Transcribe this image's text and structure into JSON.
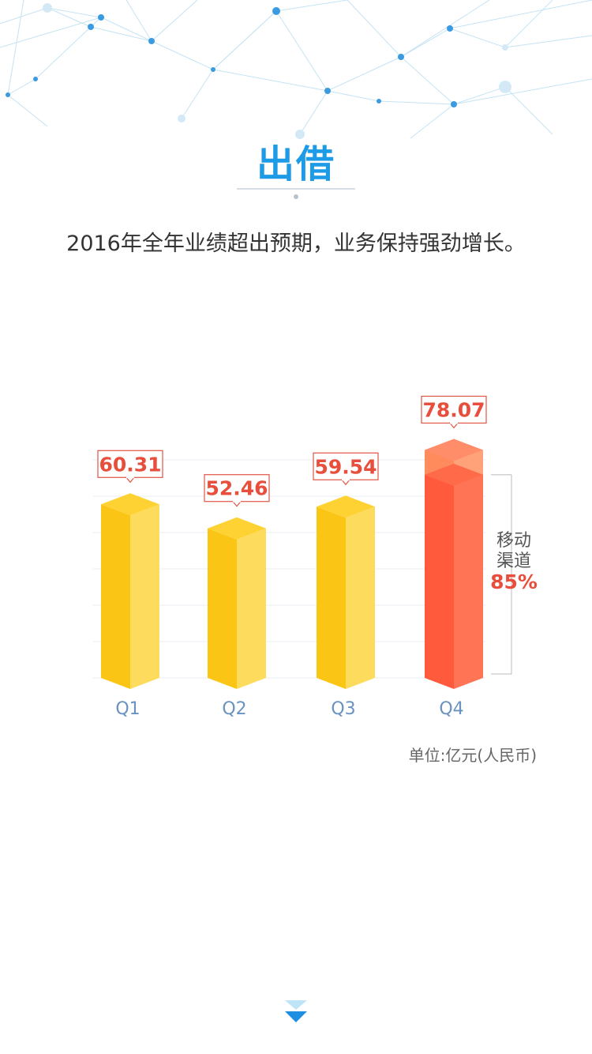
{
  "page": {
    "title": "出借",
    "subtitle": "2016年全年业绩超出预期，业务保持强劲增长。"
  },
  "chart_data": {
    "type": "bar",
    "categories": [
      "Q1",
      "Q2",
      "Q3",
      "Q4"
    ],
    "values": [
      60.31,
      52.46,
      59.54,
      78.07
    ],
    "value_labels": [
      "60.31",
      "52.46",
      "59.54",
      "78.07"
    ],
    "unit": "单位:亿元(人民币)",
    "colors": {
      "default": "#fbc515",
      "highlight": "#ff6848",
      "label": "#e84e3c",
      "axis_text": "#6a92bf"
    },
    "highlight_index": 3,
    "highlight_segment": {
      "label_line1": "移动",
      "label_line2": "渠道",
      "percent": "85%",
      "fraction": 0.85
    },
    "ylim": [
      0,
      80
    ],
    "grid": true
  },
  "decorations": {
    "bottom_arrow_icon": "double-chevron-down-icon"
  }
}
